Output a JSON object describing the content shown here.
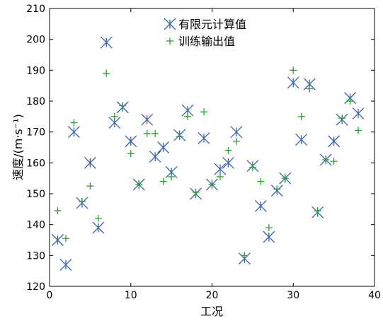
{
  "chart_data": {
    "type": "scatter",
    "xlabel": "工况",
    "ylabel": "速度/(m·s⁻¹)",
    "xlim": [
      0,
      40
    ],
    "ylim": [
      120,
      210
    ],
    "xticks": [
      0,
      10,
      20,
      30,
      40
    ],
    "yticks": [
      120,
      130,
      140,
      150,
      160,
      170,
      180,
      190,
      200,
      210
    ],
    "grid": false,
    "legend_position": "top",
    "series": [
      {
        "name": "有限元计算值",
        "marker": "x-star",
        "color": "#3A62AD",
        "points": [
          [
            1,
            135
          ],
          [
            2,
            127
          ],
          [
            3,
            170
          ],
          [
            4,
            147
          ],
          [
            5,
            160
          ],
          [
            6,
            139
          ],
          [
            7,
            199
          ],
          [
            8,
            173
          ],
          [
            9,
            178
          ],
          [
            10,
            167
          ],
          [
            11,
            153
          ],
          [
            12,
            174
          ],
          [
            13,
            162
          ],
          [
            14,
            165
          ],
          [
            15,
            157
          ],
          [
            16,
            169
          ],
          [
            17,
            177
          ],
          [
            18,
            150
          ],
          [
            19,
            168
          ],
          [
            20,
            153
          ],
          [
            21,
            158
          ],
          [
            22,
            160
          ],
          [
            23,
            170
          ],
          [
            24,
            129
          ],
          [
            25,
            159
          ],
          [
            26,
            146
          ],
          [
            27,
            136
          ],
          [
            28,
            151
          ],
          [
            29,
            155
          ],
          [
            30,
            186
          ],
          [
            31,
            167.5
          ],
          [
            32,
            185.5
          ],
          [
            33,
            144
          ],
          [
            34,
            161
          ],
          [
            35,
            167
          ],
          [
            36,
            174
          ],
          [
            37,
            181
          ],
          [
            38,
            176
          ]
        ]
      },
      {
        "name": "训练输出值",
        "marker": "plus",
        "color": "#2CA02C",
        "points": [
          [
            1,
            144.5
          ],
          [
            2,
            135.5
          ],
          [
            3,
            173
          ],
          [
            4,
            147.5
          ],
          [
            5,
            152.5
          ],
          [
            6,
            142
          ],
          [
            7,
            189
          ],
          [
            8,
            175
          ],
          [
            9,
            178.5
          ],
          [
            10,
            163
          ],
          [
            11,
            153
          ],
          [
            12,
            169.5
          ],
          [
            13,
            169.5
          ],
          [
            14,
            154
          ],
          [
            15,
            155.5
          ],
          [
            16,
            168.5
          ],
          [
            17,
            175
          ],
          [
            18,
            150.5
          ],
          [
            19,
            176.5
          ],
          [
            20,
            153
          ],
          [
            21,
            155.5
          ],
          [
            22,
            164
          ],
          [
            23,
            167
          ],
          [
            24,
            130
          ],
          [
            25,
            158.5
          ],
          [
            26,
            154
          ],
          [
            27,
            139
          ],
          [
            28,
            151.5
          ],
          [
            29,
            155
          ],
          [
            30,
            190
          ],
          [
            31,
            175
          ],
          [
            32,
            184
          ],
          [
            33,
            144.5
          ],
          [
            34,
            161
          ],
          [
            35,
            160.5
          ],
          [
            36,
            174.5
          ],
          [
            37,
            180
          ],
          [
            38,
            170.5
          ]
        ]
      }
    ]
  }
}
